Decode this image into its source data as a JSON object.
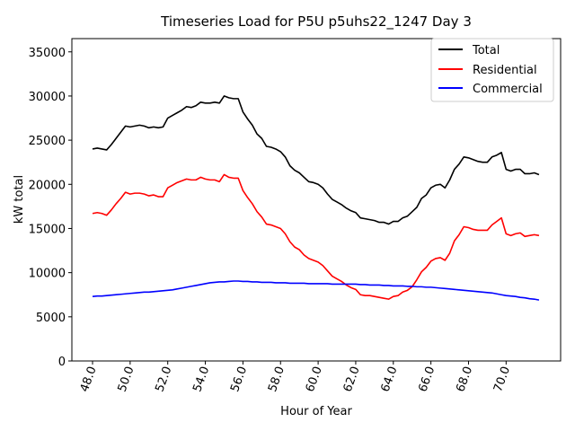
{
  "chart_data": {
    "type": "line",
    "title": "Timeseries Load for P5U p5uhs22_1247  Day 3",
    "xlabel": "Hour of Year",
    "ylabel": "kW total",
    "xlim": [
      46.9,
      72.9
    ],
    "ylim": [
      0,
      36500
    ],
    "x_ticks": [
      48,
      50,
      52,
      54,
      56,
      58,
      60,
      62,
      64,
      66,
      68,
      70
    ],
    "x_tick_labels": [
      "48.0",
      "50.0",
      "52.0",
      "54.0",
      "56.0",
      "58.0",
      "60.0",
      "62.0",
      "64.0",
      "66.0",
      "68.0",
      "70.0"
    ],
    "y_ticks": [
      0,
      5000,
      10000,
      15000,
      20000,
      25000,
      30000,
      35000
    ],
    "y_tick_labels": [
      "0",
      "5000",
      "10000",
      "15000",
      "20000",
      "25000",
      "30000",
      "35000"
    ],
    "legend_position": "top-right",
    "x": [
      48.0,
      48.25,
      48.5,
      48.75,
      49.0,
      49.25,
      49.5,
      49.75,
      50.0,
      50.25,
      50.5,
      50.75,
      51.0,
      51.25,
      51.5,
      51.75,
      52.0,
      52.25,
      52.5,
      52.75,
      53.0,
      53.25,
      53.5,
      53.75,
      54.0,
      54.25,
      54.5,
      54.75,
      55.0,
      55.25,
      55.5,
      55.75,
      56.0,
      56.25,
      56.5,
      56.75,
      57.0,
      57.25,
      57.5,
      57.75,
      58.0,
      58.25,
      58.5,
      58.75,
      59.0,
      59.25,
      59.5,
      59.75,
      60.0,
      60.25,
      60.5,
      60.75,
      61.0,
      61.25,
      61.5,
      61.75,
      62.0,
      62.25,
      62.5,
      62.75,
      63.0,
      63.25,
      63.5,
      63.75,
      64.0,
      64.25,
      64.5,
      64.75,
      65.0,
      65.25,
      65.5,
      65.75,
      66.0,
      66.25,
      66.5,
      66.75,
      67.0,
      67.25,
      67.5,
      67.75,
      68.0,
      68.25,
      68.5,
      68.75,
      69.0,
      69.25,
      69.5,
      69.75,
      70.0,
      70.25,
      70.5,
      70.75,
      71.0,
      71.25,
      71.5,
      71.75
    ],
    "series": [
      {
        "name": "Total",
        "color": "#000000",
        "values": [
          24000,
          24100,
          24000,
          23900,
          24500,
          25200,
          25900,
          26600,
          26500,
          26600,
          26700,
          26600,
          26400,
          26500,
          26400,
          26500,
          27500,
          27800,
          28100,
          28400,
          28800,
          28700,
          28900,
          29300,
          29200,
          29200,
          29300,
          29200,
          30000,
          29800,
          29700,
          29700,
          28200,
          27400,
          26700,
          25700,
          25200,
          24300,
          24200,
          24000,
          23700,
          23100,
          22100,
          21600,
          21300,
          20800,
          20300,
          20200,
          20000,
          19600,
          18900,
          18300,
          18000,
          17700,
          17300,
          17000,
          16800,
          16200,
          16100,
          16000,
          15900,
          15700,
          15700,
          15500,
          15800,
          15800,
          16200,
          16400,
          16900,
          17400,
          18400,
          18800,
          19600,
          19900,
          20000,
          19600,
          20500,
          21700,
          22300,
          23100,
          23000,
          22800,
          22600,
          22500,
          22500,
          23100,
          23300,
          23600,
          21700,
          21500,
          21700,
          21700,
          21200,
          21200,
          21300,
          21100
        ]
      },
      {
        "name": "Residential",
        "color": "#ff0000",
        "values": [
          16700,
          16800,
          16700,
          16500,
          17100,
          17800,
          18400,
          19100,
          18900,
          19000,
          19000,
          18900,
          18700,
          18800,
          18600,
          18600,
          19600,
          19900,
          20200,
          20400,
          20600,
          20500,
          20500,
          20800,
          20600,
          20500,
          20500,
          20300,
          21100,
          20800,
          20700,
          20700,
          19300,
          18500,
          17800,
          16900,
          16300,
          15500,
          15400,
          15200,
          15000,
          14400,
          13500,
          12900,
          12600,
          12000,
          11600,
          11400,
          11200,
          10800,
          10200,
          9600,
          9300,
          9000,
          8600,
          8300,
          8100,
          7500,
          7400,
          7400,
          7300,
          7200,
          7100,
          7000,
          7300,
          7400,
          7800,
          8000,
          8400,
          9200,
          10100,
          10600,
          11300,
          11600,
          11700,
          11400,
          12200,
          13600,
          14300,
          15200,
          15100,
          14900,
          14800,
          14800,
          14800,
          15400,
          15800,
          16200,
          14400,
          14200,
          14400,
          14500,
          14100,
          14200,
          14300,
          14200
        ]
      },
      {
        "name": "Commercial",
        "color": "#0000ff",
        "values": [
          7300,
          7350,
          7350,
          7400,
          7450,
          7500,
          7550,
          7600,
          7650,
          7700,
          7750,
          7800,
          7800,
          7850,
          7900,
          7950,
          8000,
          8050,
          8150,
          8250,
          8350,
          8450,
          8550,
          8650,
          8750,
          8850,
          8900,
          8950,
          8950,
          9000,
          9050,
          9050,
          9000,
          9000,
          8950,
          8950,
          8900,
          8900,
          8900,
          8850,
          8850,
          8850,
          8800,
          8800,
          8800,
          8800,
          8750,
          8750,
          8750,
          8750,
          8750,
          8700,
          8700,
          8700,
          8700,
          8700,
          8700,
          8650,
          8650,
          8600,
          8600,
          8600,
          8550,
          8550,
          8500,
          8500,
          8500,
          8450,
          8450,
          8400,
          8400,
          8350,
          8350,
          8300,
          8250,
          8200,
          8150,
          8100,
          8050,
          8000,
          7950,
          7900,
          7850,
          7800,
          7750,
          7700,
          7600,
          7500,
          7400,
          7350,
          7300,
          7200,
          7150,
          7050,
          7000,
          6900
        ]
      }
    ]
  }
}
